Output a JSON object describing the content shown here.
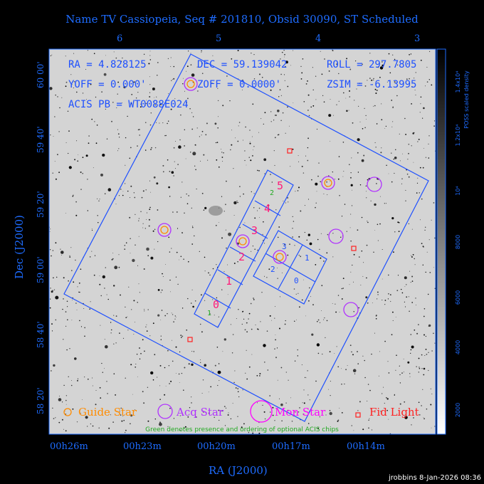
{
  "title": "Name TV Cassiopeia, Seq # 201810, Obsid 30090, ST Scheduled",
  "top_ticks": [
    "6",
    "5",
    "4",
    "3"
  ],
  "bottom_ticks": [
    "00h26m",
    "00h23m",
    "00h20m",
    "00h17m",
    "00h14m"
  ],
  "left_ticks": [
    "60 00'",
    "59 40'",
    "59 20'",
    "59 00'",
    "58 40'",
    "58 20'"
  ],
  "xlabel": "RA (J2000)",
  "ylabel": "Dec (J2000)",
  "info": {
    "ra": "RA = 4.828125",
    "dec": "DEC = 59.139042",
    "roll": "ROLL = 297.7805",
    "yoff": "YOFF =    0.000'",
    "zoff": "ZOFF =   0.0000'",
    "zsim": "ZSIM = -6.13995",
    "acis": "ACIS PB = WT0088E024"
  },
  "colorbar": {
    "label": "POSS scaled density",
    "ticks": [
      "2000",
      "4000",
      "6000",
      "8000",
      "10⁴",
      "1.2x10⁴",
      "1.4x10⁴"
    ]
  },
  "chips": [
    "0",
    "1",
    "2",
    "3",
    "4",
    "5",
    "0",
    "1",
    "2",
    "3"
  ],
  "optional_chips": [
    "1",
    "2"
  ],
  "legend": {
    "guide": "Guide Star",
    "acq": "Acq Star",
    "mon": "Mon Star",
    "fid": "Fid Light",
    "note": "Green denotes presence and ordering of optional ACIS chips"
  },
  "footer": "jrobbins  8-Jan-2026 08:36",
  "colors": {
    "axis": "#1e6cff",
    "guide": "#ff8c00",
    "acq": "#b030ff",
    "mon": "#ff00ff",
    "fid": "#ff2020",
    "chip_label_s": "#ff1a7a",
    "optional": "#22aa22"
  }
}
